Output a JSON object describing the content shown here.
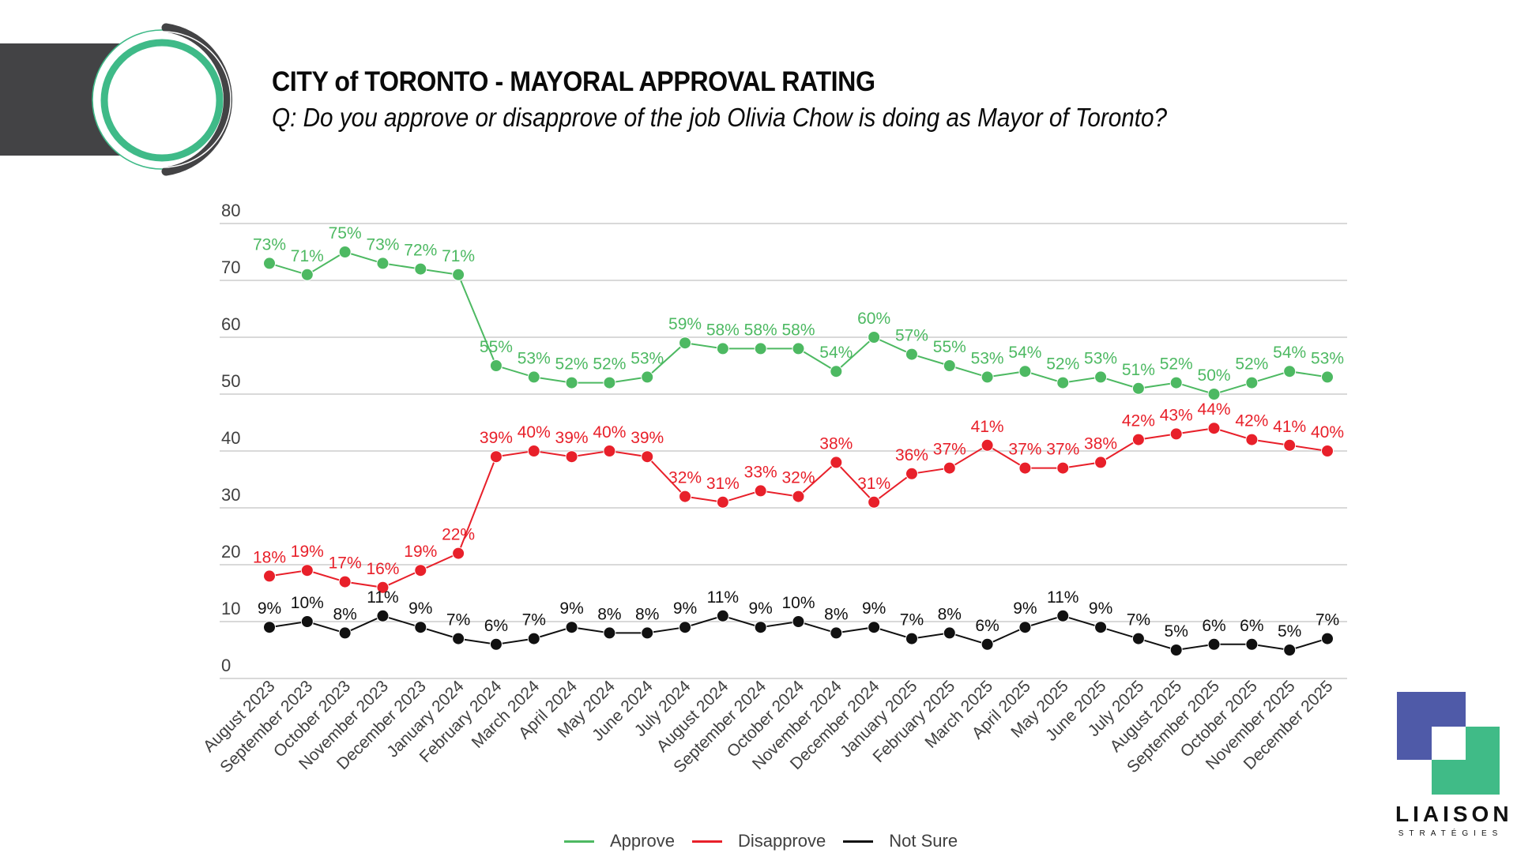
{
  "header": {
    "title": "CITY of TORONTO - MAYORAL APPROVAL RATING",
    "subtitle": "Q: Do you approve or disapprove of the job Olivia Chow is doing as Mayor of Toronto?"
  },
  "brand": {
    "name": "LIAISON",
    "tagline": "STRATÉGIES",
    "colors": {
      "purple": "#4f5aa8",
      "green": "#40bb87",
      "dark": "#434345"
    }
  },
  "legend": [
    {
      "label": "Approve",
      "color": "#4db962"
    },
    {
      "label": "Disapprove",
      "color": "#e8202a"
    },
    {
      "label": "Not Sure",
      "color": "#111111"
    }
  ],
  "chart_data": {
    "type": "line",
    "title": "CITY of TORONTO - MAYORAL APPROVAL RATING",
    "subtitle": "Q: Do you approve or disapprove of the job Olivia Chow is doing as Mayor of Toronto?",
    "xlabel": "",
    "ylabel": "",
    "ylim": [
      0,
      80
    ],
    "yticks": [
      0,
      10,
      20,
      30,
      40,
      50,
      60,
      70,
      80
    ],
    "grid": true,
    "legend_position": "bottom",
    "categories": [
      "August 2023",
      "September 2023",
      "October 2023",
      "November 2023",
      "December 2023",
      "January 2024",
      "February 2024",
      "March 2024",
      "April 2024",
      "May 2024",
      "June 2024",
      "July 2024",
      "August 2024",
      "September 2024",
      "October 2024",
      "November 2024",
      "December 2024",
      "January 2025",
      "February 2025",
      "March 2025",
      "April 2025",
      "May 2025",
      "June 2025",
      "July 2025",
      "August 2025",
      "September 2025",
      "October 2025",
      "November 2025",
      "December 2025"
    ],
    "series": [
      {
        "name": "Approve",
        "color": "#4db962",
        "values": [
          73,
          71,
          75,
          73,
          72,
          71,
          55,
          53,
          52,
          52,
          53,
          59,
          58,
          58,
          58,
          54,
          60,
          57,
          55,
          53,
          54,
          52,
          53,
          51,
          52,
          50,
          52,
          54,
          53
        ]
      },
      {
        "name": "Disapprove",
        "color": "#e8202a",
        "values": [
          18,
          19,
          17,
          16,
          19,
          22,
          39,
          40,
          39,
          40,
          39,
          32,
          31,
          33,
          32,
          38,
          31,
          36,
          37,
          41,
          37,
          37,
          38,
          42,
          43,
          44,
          42,
          41,
          40
        ]
      },
      {
        "name": "Not Sure",
        "color": "#111111",
        "values": [
          9,
          10,
          8,
          11,
          9,
          7,
          6,
          7,
          9,
          8,
          8,
          9,
          11,
          9,
          10,
          8,
          9,
          7,
          8,
          6,
          9,
          11,
          9,
          7,
          5,
          6,
          6,
          5,
          7
        ]
      }
    ],
    "label_suffix": "%"
  }
}
